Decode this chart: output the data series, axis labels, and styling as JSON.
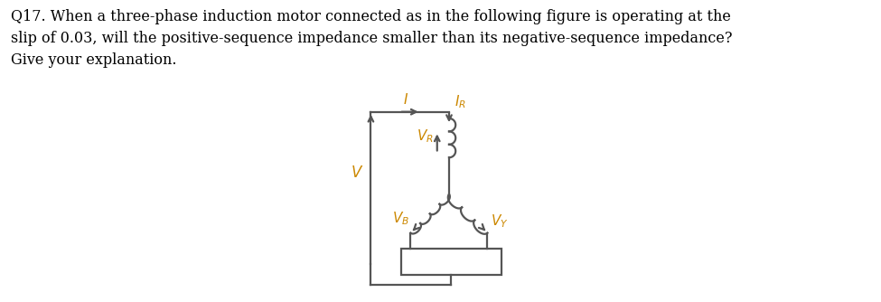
{
  "title_text": "Q17. When a three-phase induction motor connected as in the following figure is operating at the\nslip of 0.03, will the positive-sequence impedance smaller than its negative-sequence impedance?\nGive your explanation.",
  "title_color": "#000000",
  "title_fontsize": 11.5,
  "bg_color": "#ffffff",
  "orange": "#cc8800",
  "line_color": "#555555",
  "fig_width": 9.75,
  "fig_height": 3.34,
  "dpi": 100
}
